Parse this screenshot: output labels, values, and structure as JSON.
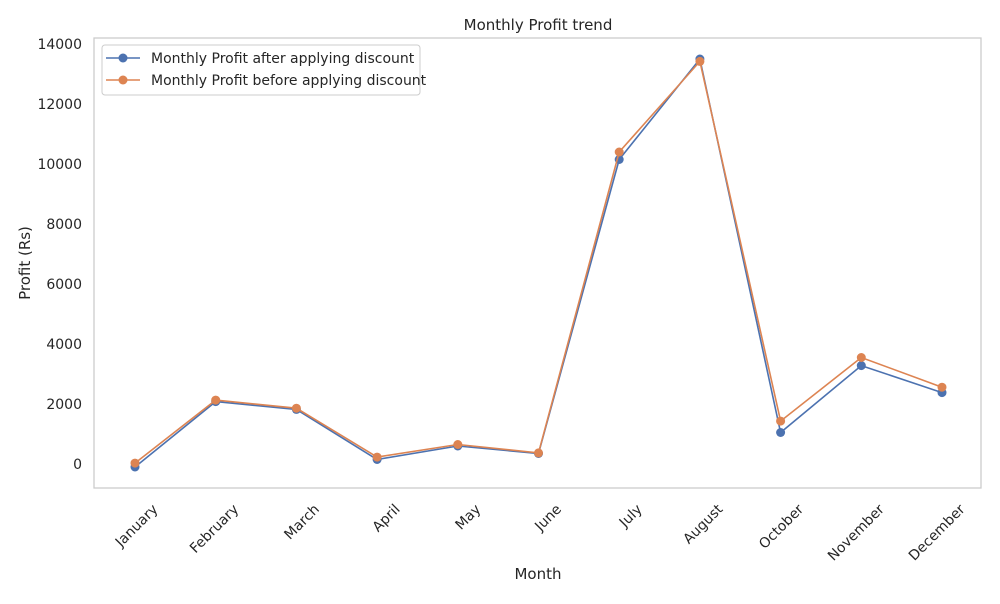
{
  "chart_data": {
    "type": "line",
    "title": "Monthly Profit trend",
    "xlabel": "Month",
    "ylabel": "Profit (Rs)",
    "categories": [
      "January",
      "February",
      "March",
      "April",
      "May",
      "June",
      "July",
      "August",
      "October",
      "November",
      "December"
    ],
    "series": [
      {
        "name": "Monthly Profit after applying discount",
        "color": "#4c72b0",
        "values": [
          -100,
          2080,
          1820,
          150,
          600,
          350,
          10150,
          13500,
          1050,
          3280,
          2380
        ]
      },
      {
        "name": "Monthly Profit before applying discount",
        "color": "#dd8452",
        "values": [
          30,
          2130,
          1860,
          230,
          650,
          370,
          10400,
          13420,
          1430,
          3550,
          2560
        ]
      }
    ],
    "yticks": [
      "0",
      "2000",
      "4000",
      "6000",
      "8000",
      "10000",
      "12000",
      "14000"
    ],
    "ylim": [
      -800,
      14000
    ],
    "grid": false,
    "legend_position": "top-left",
    "marker": "circle"
  }
}
